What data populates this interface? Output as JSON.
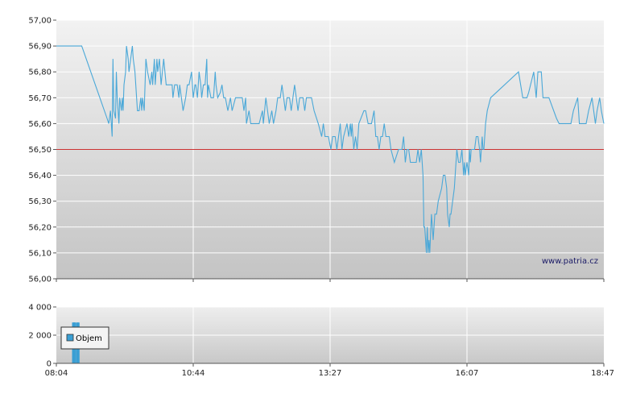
{
  "chart_data": [
    {
      "type": "line",
      "y_ticks": [
        "57,00",
        "56,90",
        "56,80",
        "56,70",
        "56,60",
        "56,50",
        "56,40",
        "56,30",
        "56,20",
        "56,10",
        "56,00"
      ],
      "ylim": [
        56.0,
        57.0
      ],
      "reference_line": 56.5,
      "colors": {
        "line": "#4aa8d8",
        "reference": "#cc3333"
      },
      "watermark": "www.patria.cz",
      "series": [
        {
          "values": [
            [
              0,
              56.9
            ],
            [
              10,
              56.9
            ],
            [
              30,
              56.9
            ],
            [
              60,
              56.62
            ],
            [
              62,
              56.6
            ],
            [
              64,
              56.65
            ],
            [
              66,
              56.55
            ],
            [
              67,
              56.85
            ],
            [
              68,
              56.65
            ],
            [
              70,
              56.62
            ],
            [
              71,
              56.8
            ],
            [
              72,
              56.7
            ],
            [
              74,
              56.6
            ],
            [
              75,
              56.7
            ],
            [
              77,
              56.65
            ],
            [
              78,
              56.7
            ],
            [
              79,
              56.65
            ],
            [
              80,
              56.75
            ],
            [
              82,
              56.8
            ],
            [
              83,
              56.9
            ],
            [
              85,
              56.85
            ],
            [
              86,
              56.8
            ],
            [
              88,
              56.85
            ],
            [
              90,
              56.9
            ],
            [
              91,
              56.85
            ],
            [
              93,
              56.8
            ],
            [
              96,
              56.65
            ],
            [
              98,
              56.65
            ],
            [
              100,
              56.7
            ],
            [
              101,
              56.65
            ],
            [
              102,
              56.7
            ],
            [
              104,
              56.65
            ],
            [
              106,
              56.85
            ],
            [
              108,
              56.8
            ],
            [
              111,
              56.75
            ],
            [
              113,
              56.8
            ],
            [
              114,
              56.75
            ],
            [
              116,
              56.85
            ],
            [
              117,
              56.75
            ],
            [
              119,
              56.85
            ],
            [
              120,
              56.8
            ],
            [
              122,
              56.85
            ],
            [
              124,
              56.75
            ],
            [
              127,
              56.85
            ],
            [
              130,
              56.75
            ],
            [
              135,
              56.75
            ],
            [
              137,
              56.75
            ],
            [
              138,
              56.7
            ],
            [
              140,
              56.75
            ],
            [
              143,
              56.75
            ],
            [
              145,
              56.7
            ],
            [
              146,
              56.75
            ],
            [
              148,
              56.7
            ],
            [
              150,
              56.65
            ],
            [
              153,
              56.7
            ],
            [
              155,
              56.75
            ],
            [
              157,
              56.75
            ],
            [
              160,
              56.8
            ],
            [
              161,
              56.75
            ],
            [
              162,
              56.7
            ],
            [
              164,
              56.75
            ],
            [
              165,
              56.75
            ],
            [
              167,
              56.7
            ],
            [
              169,
              56.8
            ],
            [
              171,
              56.75
            ],
            [
              172,
              56.7
            ],
            [
              174,
              56.75
            ],
            [
              176,
              56.75
            ],
            [
              178,
              56.85
            ],
            [
              179,
              56.7
            ],
            [
              180,
              56.75
            ],
            [
              183,
              56.7
            ],
            [
              186,
              56.7
            ],
            [
              188,
              56.8
            ],
            [
              189,
              56.75
            ],
            [
              191,
              56.7
            ],
            [
              194,
              56.72
            ],
            [
              196,
              56.75
            ],
            [
              198,
              56.7
            ],
            [
              200,
              56.7
            ],
            [
              203,
              56.65
            ],
            [
              206,
              56.7
            ],
            [
              208,
              56.65
            ],
            [
              212,
              56.7
            ],
            [
              215,
              56.7
            ],
            [
              218,
              56.7
            ],
            [
              220,
              56.7
            ],
            [
              222,
              56.65
            ],
            [
              224,
              56.7
            ],
            [
              225,
              56.6
            ],
            [
              228,
              56.65
            ],
            [
              230,
              56.6
            ],
            [
              233,
              56.6
            ],
            [
              238,
              56.6
            ],
            [
              240,
              56.6
            ],
            [
              244,
              56.65
            ],
            [
              245,
              56.6
            ],
            [
              248,
              56.7
            ],
            [
              252,
              56.6
            ],
            [
              255,
              56.65
            ],
            [
              257,
              56.6
            ],
            [
              260,
              56.65
            ],
            [
              262,
              56.7
            ],
            [
              265,
              56.7
            ],
            [
              267,
              56.75
            ],
            [
              269,
              56.7
            ],
            [
              271,
              56.65
            ],
            [
              273,
              56.7
            ],
            [
              276,
              56.7
            ],
            [
              278,
              56.65
            ],
            [
              280,
              56.7
            ],
            [
              282,
              56.75
            ],
            [
              284,
              56.7
            ],
            [
              286,
              56.65
            ],
            [
              288,
              56.7
            ],
            [
              292,
              56.7
            ],
            [
              294,
              56.65
            ],
            [
              296,
              56.7
            ],
            [
              298,
              56.7
            ],
            [
              302,
              56.7
            ],
            [
              305,
              56.65
            ],
            [
              310,
              56.6
            ],
            [
              314,
              56.55
            ],
            [
              316,
              56.6
            ],
            [
              318,
              56.55
            ],
            [
              322,
              56.55
            ],
            [
              325,
              56.5
            ],
            [
              327,
              56.55
            ],
            [
              330,
              56.55
            ],
            [
              332,
              56.5
            ],
            [
              334,
              56.55
            ],
            [
              336,
              56.6
            ],
            [
              338,
              56.5
            ],
            [
              340,
              56.55
            ],
            [
              344,
              56.6
            ],
            [
              346,
              56.55
            ],
            [
              348,
              56.6
            ],
            [
              349,
              56.55
            ],
            [
              350,
              56.6
            ],
            [
              352,
              56.5
            ],
            [
              354,
              56.55
            ],
            [
              356,
              56.5
            ],
            [
              358,
              56.6
            ],
            [
              364,
              56.65
            ],
            [
              366,
              56.65
            ],
            [
              369,
              56.6
            ],
            [
              371,
              56.6
            ],
            [
              373,
              56.6
            ],
            [
              376,
              56.65
            ],
            [
              378,
              56.55
            ],
            [
              380,
              56.55
            ],
            [
              382,
              56.5
            ],
            [
              384,
              56.55
            ],
            [
              386,
              56.55
            ],
            [
              388,
              56.6
            ],
            [
              390,
              56.55
            ],
            [
              392,
              56.55
            ],
            [
              394,
              56.55
            ],
            [
              396,
              56.5
            ],
            [
              400,
              56.45
            ],
            [
              405,
              56.5
            ],
            [
              407,
              56.5
            ],
            [
              409,
              56.5
            ],
            [
              411,
              56.55
            ],
            [
              413,
              56.45
            ],
            [
              415,
              56.5
            ],
            [
              417,
              56.5
            ],
            [
              419,
              56.45
            ],
            [
              423,
              56.45
            ],
            [
              426,
              56.45
            ],
            [
              428,
              56.5
            ],
            [
              430,
              56.45
            ],
            [
              432,
              56.5
            ],
            [
              434,
              56.4
            ],
            [
              435,
              56.2
            ],
            [
              436,
              56.2
            ],
            [
              437,
              56.15
            ],
            [
              438,
              56.1
            ],
            [
              439,
              56.2
            ],
            [
              440,
              56.1
            ],
            [
              441,
              56.15
            ],
            [
              442,
              56.1
            ],
            [
              444,
              56.25
            ],
            [
              445,
              56.2
            ],
            [
              446,
              56.15
            ],
            [
              448,
              56.25
            ],
            [
              450,
              56.25
            ],
            [
              452,
              56.3
            ],
            [
              456,
              56.35
            ],
            [
              458,
              56.4
            ],
            [
              460,
              56.4
            ],
            [
              462,
              56.35
            ],
            [
              463,
              56.25
            ],
            [
              465,
              56.2
            ],
            [
              466,
              56.25
            ],
            [
              467,
              56.25
            ],
            [
              469,
              56.3
            ],
            [
              471,
              56.35
            ],
            [
              474,
              56.5
            ],
            [
              476,
              56.45
            ],
            [
              478,
              56.45
            ],
            [
              480,
              56.5
            ],
            [
              481,
              56.45
            ],
            [
              482,
              56.4
            ],
            [
              483,
              56.45
            ],
            [
              484,
              56.4
            ],
            [
              486,
              56.45
            ],
            [
              488,
              56.4
            ],
            [
              489,
              56.5
            ],
            [
              490,
              56.45
            ],
            [
              491,
              56.5
            ],
            [
              494,
              56.5
            ],
            [
              495,
              56.5
            ],
            [
              497,
              56.55
            ],
            [
              499,
              56.55
            ],
            [
              501,
              56.5
            ],
            [
              502,
              56.45
            ],
            [
              503,
              56.5
            ],
            [
              504,
              56.55
            ],
            [
              505,
              56.5
            ],
            [
              506,
              56.5
            ],
            [
              508,
              56.6
            ],
            [
              510,
              56.65
            ],
            [
              514,
              56.7
            ],
            [
              547,
              56.8
            ],
            [
              552,
              56.7
            ],
            [
              556,
              56.7
            ],
            [
              557,
              56.7
            ],
            [
              559,
              56.72
            ],
            [
              565,
              56.8
            ],
            [
              568,
              56.7
            ],
            [
              570,
              56.8
            ],
            [
              574,
              56.8
            ],
            [
              576,
              56.7
            ],
            [
              583,
              56.7
            ],
            [
              592,
              56.62
            ],
            [
              595,
              56.6
            ],
            [
              598,
              56.6
            ],
            [
              603,
              56.6
            ],
            [
              605,
              56.6
            ],
            [
              609,
              56.6
            ],
            [
              612,
              56.65
            ],
            [
              617,
              56.7
            ],
            [
              619,
              56.6
            ],
            [
              621,
              56.6
            ],
            [
              627,
              56.6
            ],
            [
              630,
              56.65
            ],
            [
              634,
              56.7
            ],
            [
              636,
              56.65
            ],
            [
              638,
              56.6
            ],
            [
              640,
              56.65
            ],
            [
              643,
              56.7
            ],
            [
              645,
              56.65
            ],
            [
              648,
              56.6
            ]
          ]
        }
      ]
    },
    {
      "type": "bar",
      "y_ticks": [
        "4 000",
        "2 000",
        "0"
      ],
      "ylim": [
        0,
        4000
      ],
      "x_ticks": [
        "08:04",
        "10:44",
        "13:27",
        "16:07",
        "18:47"
      ],
      "legend": {
        "label": "Objem",
        "placement": "top-left"
      },
      "colors": {
        "bar": "#3a9fd4"
      },
      "series": [
        {
          "name": "Objem",
          "values": [
            [
              20,
              2900
            ],
            [
              21,
              2900
            ],
            [
              22,
              2900
            ],
            [
              25,
              2900
            ],
            [
              26,
              2900
            ]
          ]
        }
      ]
    }
  ]
}
